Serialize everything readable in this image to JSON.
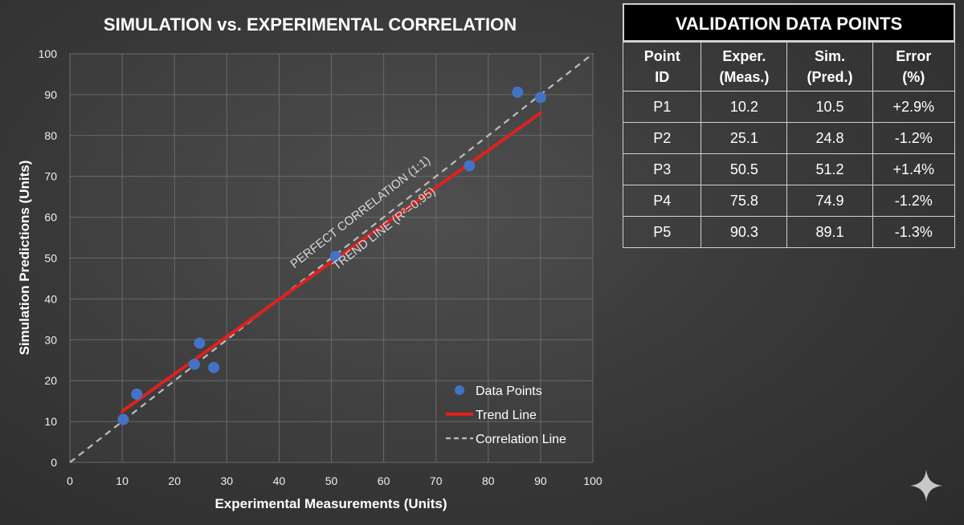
{
  "chart_data": {
    "type": "scatter",
    "title": "SIMULATION vs. EXPERIMENTAL CORRELATION",
    "xlabel": "Experimental Measurements (Units)",
    "ylabel": "Simulation Predictions (Units)",
    "xlim": [
      0,
      100
    ],
    "ylim": [
      0,
      100
    ],
    "xticks": [
      0,
      10,
      20,
      30,
      40,
      50,
      60,
      70,
      80,
      90,
      100
    ],
    "yticks": [
      0,
      10,
      20,
      30,
      40,
      50,
      60,
      70,
      80,
      90,
      100
    ],
    "grid": true,
    "legend_position": "bottom-right",
    "series": [
      {
        "name": "Data Points",
        "kind": "scatter",
        "color": "#4472c4",
        "points": [
          [
            10.2,
            10.5
          ],
          [
            12.8,
            16.7
          ],
          [
            23.8,
            24.0
          ],
          [
            24.8,
            29.2
          ],
          [
            27.5,
            23.2
          ],
          [
            50.8,
            50.4
          ],
          [
            76.4,
            72.6
          ],
          [
            85.6,
            90.6
          ],
          [
            90.0,
            89.3
          ]
        ]
      },
      {
        "name": "Trend Line",
        "kind": "line",
        "color": "#e02020",
        "points": [
          [
            10,
            12.5
          ],
          [
            90,
            85.5
          ]
        ]
      },
      {
        "name": "Correlation Line",
        "kind": "dashed-line",
        "color": "#bdbdbd",
        "points": [
          [
            0,
            0
          ],
          [
            100,
            100
          ]
        ]
      }
    ],
    "annotations": [
      {
        "text": "PERFECT CORRELATION (1:1)",
        "color": "#d9d9d9"
      },
      {
        "text": "TREND LINE (R²=0.95)",
        "color": "#d9d9d9"
      }
    ]
  },
  "table": {
    "title": "VALIDATION DATA POINTS",
    "headers": [
      [
        "Point",
        "ID"
      ],
      [
        "Exper.",
        "(Meas.)"
      ],
      [
        "Sim.",
        "(Pred.)"
      ],
      [
        "Error",
        "(%)"
      ]
    ],
    "rows": [
      [
        "P1",
        "10.2",
        "10.5",
        "+2.9%"
      ],
      [
        "P2",
        "25.1",
        "24.8",
        "-1.2%"
      ],
      [
        "P3",
        "50.5",
        "51.2",
        "+1.4%"
      ],
      [
        "P4",
        "75.8",
        "74.9",
        "-1.2%"
      ],
      [
        "P5",
        "90.3",
        "89.1",
        "-1.3%"
      ]
    ]
  },
  "corner_icon": "sparkle-icon"
}
